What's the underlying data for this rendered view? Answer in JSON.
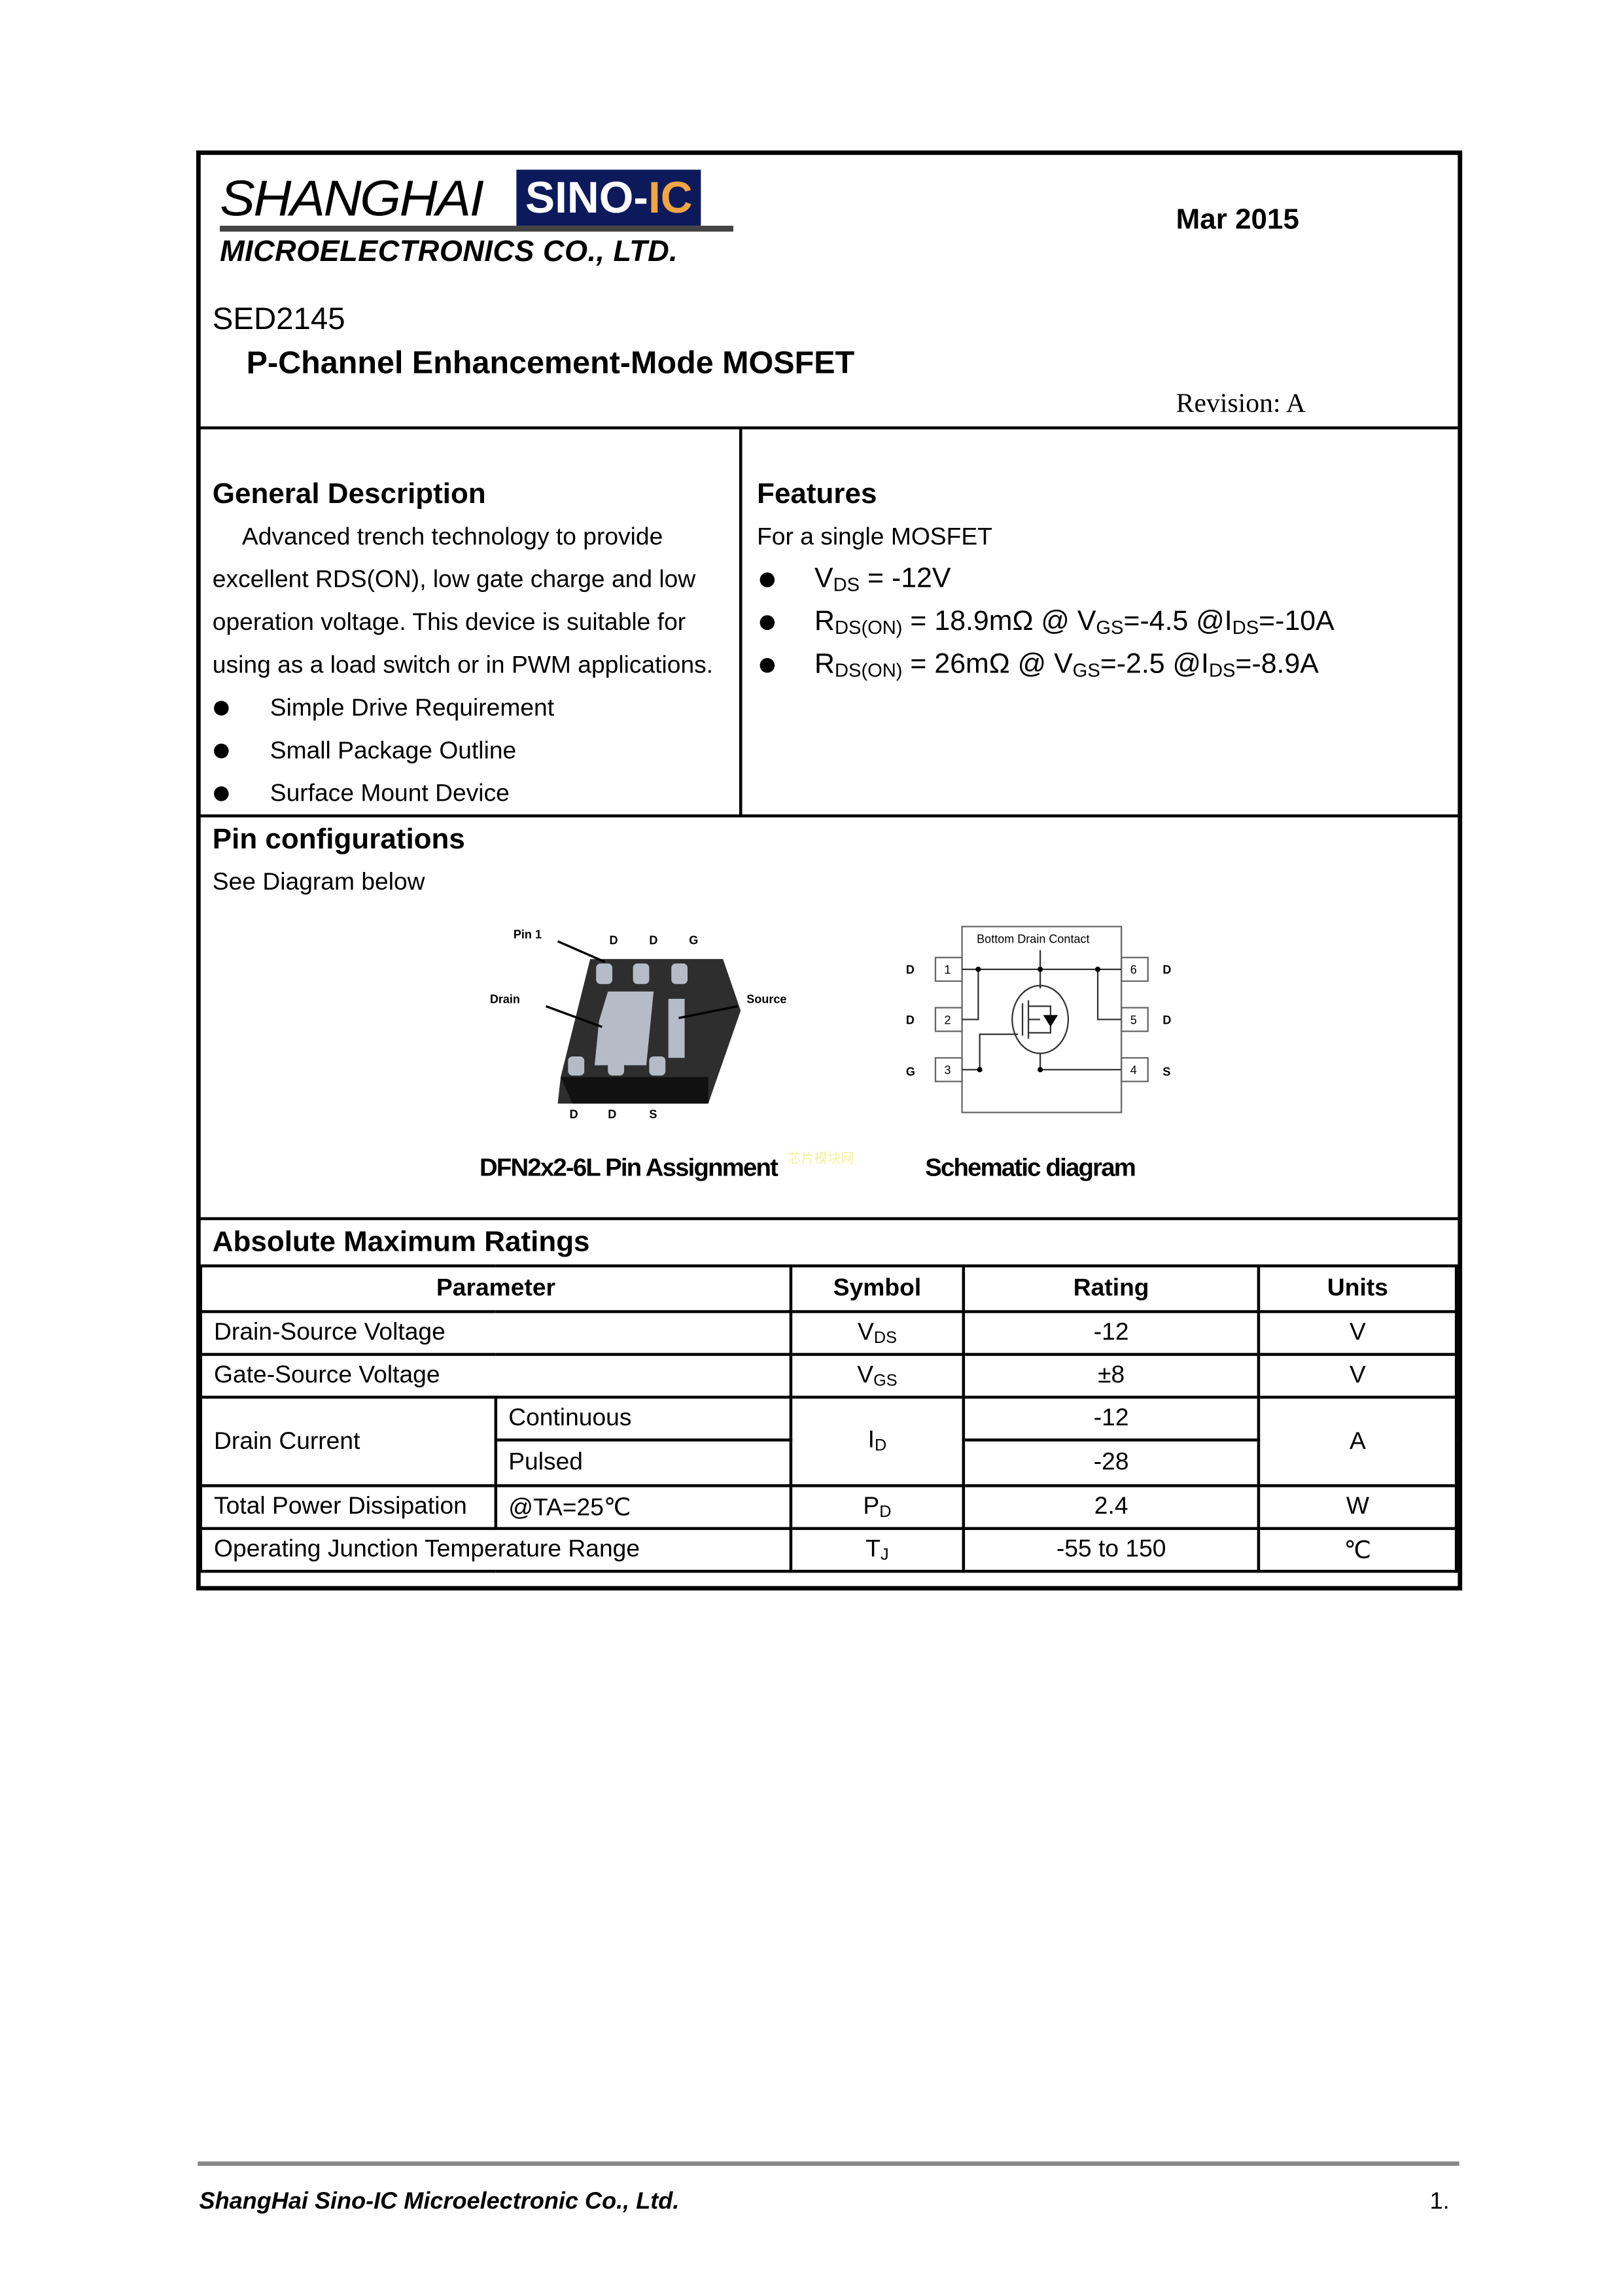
{
  "header": {
    "logo": {
      "line1": "SHANGHAI",
      "badge": "SINO-",
      "badge_accent": "IC",
      "line2": "MICROELECTRONICS CO., LTD."
    },
    "date": "Mar 2015",
    "part_number": "SED2145",
    "title": "P-Channel Enhancement-Mode MOSFET",
    "revision": "Revision: A"
  },
  "general_description": {
    "heading": "General Description",
    "lines": [
      "Advanced trench technology to provide",
      "excellent RDS(ON), low gate charge and low",
      "operation voltage. This device is suitable for",
      "using as a load switch or in PWM applications."
    ],
    "bullets": [
      "Simple Drive Requirement",
      "Small Package Outline",
      "Surface Mount Device"
    ]
  },
  "features": {
    "heading": "Features",
    "intro": "For a single MOSFET",
    "bullets": [
      [
        {
          "t": "V"
        },
        {
          "s": "DS"
        },
        {
          "t": " = -12V"
        }
      ],
      [
        {
          "t": "R"
        },
        {
          "s": "DS(ON)"
        },
        {
          "t": " = 18.9mΩ @ V"
        },
        {
          "s": "GS"
        },
        {
          "t": "=-4.5 @I"
        },
        {
          "s": "DS"
        },
        {
          "t": "=-10A"
        }
      ],
      [
        {
          "t": "R"
        },
        {
          "s": "DS(ON)"
        },
        {
          "t": " = 26mΩ @ V"
        },
        {
          "s": "GS"
        },
        {
          "t": "=-2.5 @I"
        },
        {
          "s": "DS"
        },
        {
          "t": "=-8.9A"
        }
      ]
    ]
  },
  "pin_config": {
    "heading": "Pin configurations",
    "subtitle": "See Diagram below",
    "package": {
      "caption": "DFN2x2-6L Pin Assignment",
      "pin1": "Pin 1",
      "drain": "Drain",
      "source": "Source",
      "top_pins": [
        "D",
        "D",
        "G"
      ],
      "bottom_pins": [
        "D",
        "D",
        "S"
      ]
    },
    "schematic": {
      "caption": "Schematic diagram",
      "box_label": "Bottom Drain Contact",
      "left_pins": [
        {
          "num": "1",
          "name": "D"
        },
        {
          "num": "2",
          "name": "D"
        },
        {
          "num": "3",
          "name": "G"
        }
      ],
      "right_pins": [
        {
          "num": "6",
          "name": "D"
        },
        {
          "num": "5",
          "name": "D"
        },
        {
          "num": "4",
          "name": "S"
        }
      ]
    },
    "watermark": "芯片模块网"
  },
  "ratings": {
    "heading": "Absolute Maximum Ratings",
    "columns": [
      "Parameter",
      "Symbol",
      "Rating",
      "Units"
    ],
    "rows": [
      {
        "param": "Drain-Source Voltage",
        "sym": "V",
        "sub": "DS",
        "rating": "-12",
        "unit": "V"
      },
      {
        "param": "Gate-Source Voltage",
        "sym": "V",
        "sub": "GS",
        "rating": "±8",
        "unit": "V"
      },
      {
        "param": "Drain Current",
        "cond1": "Continuous",
        "cond2": "Pulsed",
        "sym": "I",
        "sub": "D",
        "rating1": "-12",
        "rating2": "-28",
        "unit": "A"
      },
      {
        "param": "Total Power Dissipation",
        "cond": "@TA=25℃",
        "sym": "P",
        "sub": "D",
        "rating": "2.4",
        "unit": "W"
      },
      {
        "param": "Operating Junction Temperature Range",
        "sym": "T",
        "sub": "J",
        "rating": "-55 to 150",
        "unit": "℃"
      }
    ]
  },
  "footer": {
    "company": "ShangHai Sino-IC Microelectronic Co., Ltd.",
    "page": "1."
  },
  "colors": {
    "logo_badge": "#0c1a5c",
    "logo_accent": "#f2a541",
    "footer_rule": "#888888"
  }
}
